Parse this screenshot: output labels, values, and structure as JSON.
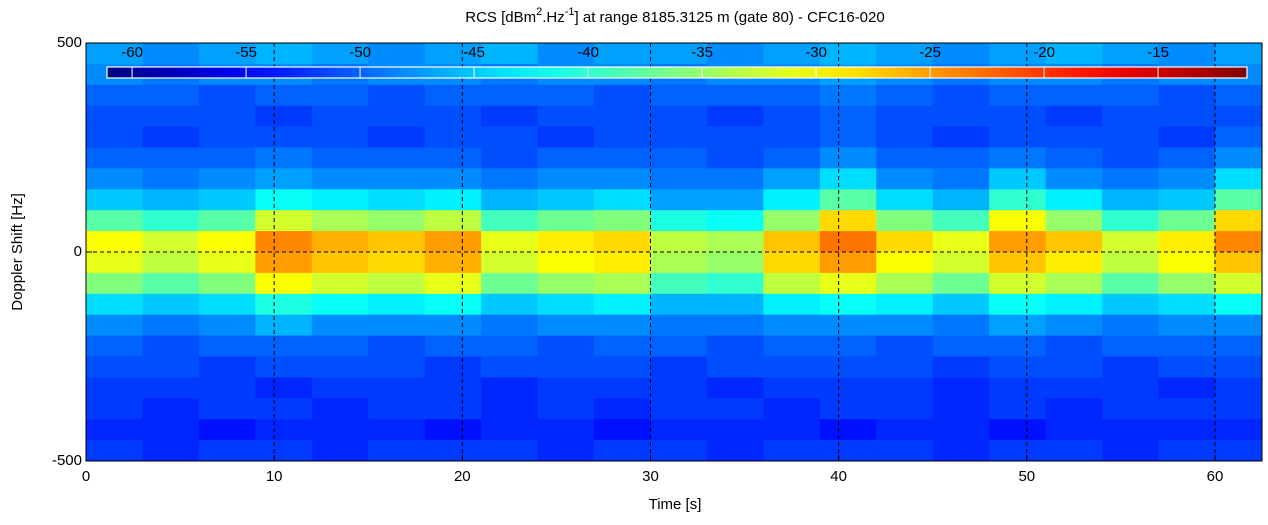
{
  "chart_data": {
    "type": "heatmap",
    "title": [
      "RCS [dBm",
      "2",
      ".Hz",
      "-1",
      "] at range 8185.3125 m (gate 80) - CFC16-020"
    ],
    "xlabel": "Time [s]",
    "ylabel": "Doppler Shift [Hz]",
    "x": [
      1.5,
      4.5,
      7.5,
      10.5,
      13.5,
      16.5,
      19.5,
      22.5,
      25.5,
      28.5,
      31.5,
      34.5,
      37.5,
      40.5,
      43.5,
      46.5,
      49.5,
      52.5,
      55.5,
      58.5,
      61.5
    ],
    "y": [
      475,
      425,
      375,
      325,
      275,
      225,
      175,
      125,
      75,
      25,
      -25,
      -75,
      -125,
      -175,
      -225,
      -275,
      -325,
      -375,
      -425,
      -475
    ],
    "z": [
      [
        -47,
        -48,
        -47,
        -46,
        -47,
        -48,
        -47,
        -46,
        -48,
        -47,
        -47,
        -48,
        -47,
        -46,
        -47,
        -48,
        -47,
        -46,
        -47,
        -48,
        -47
      ],
      [
        -48,
        -49,
        -48,
        -48,
        -49,
        -48,
        -48,
        -49,
        -48,
        -48,
        -49,
        -48,
        -48,
        -47,
        -48,
        -49,
        -48,
        -48,
        -49,
        -48,
        -48
      ],
      [
        -50,
        -50,
        -51,
        -50,
        -50,
        -51,
        -50,
        -50,
        -50,
        -51,
        -50,
        -50,
        -50,
        -49,
        -50,
        -51,
        -50,
        -50,
        -50,
        -51,
        -50
      ],
      [
        -51,
        -51,
        -51,
        -52,
        -51,
        -51,
        -51,
        -52,
        -51,
        -51,
        -51,
        -52,
        -51,
        -50,
        -51,
        -51,
        -51,
        -52,
        -51,
        -51,
        -51
      ],
      [
        -51,
        -52,
        -51,
        -51,
        -51,
        -52,
        -51,
        -51,
        -52,
        -51,
        -51,
        -51,
        -51,
        -50,
        -51,
        -52,
        -51,
        -51,
        -51,
        -52,
        -50
      ],
      [
        -50,
        -50,
        -50,
        -49,
        -50,
        -50,
        -50,
        -51,
        -50,
        -50,
        -50,
        -51,
        -50,
        -48,
        -50,
        -50,
        -49,
        -50,
        -51,
        -50,
        -48
      ],
      [
        -48,
        -49,
        -48,
        -47,
        -48,
        -48,
        -48,
        -49,
        -48,
        -48,
        -49,
        -49,
        -47,
        -44,
        -48,
        -49,
        -45,
        -48,
        -49,
        -48,
        -44
      ],
      [
        -45,
        -46,
        -45,
        -42,
        -43,
        -44,
        -43,
        -46,
        -45,
        -44,
        -47,
        -47,
        -43,
        -38,
        -44,
        -46,
        -40,
        -43,
        -46,
        -45,
        -38
      ],
      [
        -38,
        -40,
        -38,
        -32,
        -34,
        -35,
        -33,
        -39,
        -37,
        -36,
        -41,
        -42,
        -35,
        -28,
        -36,
        -39,
        -30,
        -35,
        -40,
        -37,
        -28
      ],
      [
        -30,
        -32,
        -30,
        -24,
        -26,
        -27,
        -25,
        -31,
        -29,
        -28,
        -33,
        -34,
        -27,
        -23,
        -28,
        -31,
        -25,
        -27,
        -32,
        -29,
        -24
      ],
      [
        -31,
        -33,
        -31,
        -25,
        -27,
        -28,
        -26,
        -32,
        -30,
        -29,
        -34,
        -35,
        -28,
        -25,
        -30,
        -32,
        -27,
        -29,
        -33,
        -30,
        -27
      ],
      [
        -36,
        -38,
        -36,
        -30,
        -32,
        -33,
        -31,
        -37,
        -35,
        -34,
        -39,
        -40,
        -33,
        -31,
        -34,
        -37,
        -32,
        -34,
        -38,
        -35,
        -32
      ],
      [
        -44,
        -45,
        -44,
        -41,
        -42,
        -43,
        -42,
        -45,
        -44,
        -43,
        -46,
        -46,
        -43,
        -42,
        -43,
        -45,
        -42,
        -43,
        -45,
        -44,
        -42
      ],
      [
        -48,
        -49,
        -48,
        -46,
        -48,
        -48,
        -48,
        -49,
        -48,
        -48,
        -49,
        -49,
        -48,
        -48,
        -48,
        -49,
        -47,
        -48,
        -49,
        -48,
        -48
      ],
      [
        -50,
        -51,
        -50,
        -50,
        -50,
        -51,
        -50,
        -50,
        -51,
        -50,
        -50,
        -51,
        -50,
        -50,
        -51,
        -50,
        -50,
        -51,
        -50,
        -50,
        -50
      ],
      [
        -51,
        -51,
        -52,
        -51,
        -51,
        -51,
        -52,
        -51,
        -51,
        -51,
        -52,
        -51,
        -51,
        -51,
        -51,
        -52,
        -51,
        -51,
        -52,
        -51,
        -51
      ],
      [
        -52,
        -52,
        -52,
        -53,
        -52,
        -52,
        -52,
        -53,
        -52,
        -52,
        -52,
        -53,
        -52,
        -52,
        -52,
        -53,
        -52,
        -52,
        -52,
        -53,
        -52
      ],
      [
        -52,
        -53,
        -52,
        -52,
        -53,
        -52,
        -52,
        -53,
        -52,
        -53,
        -52,
        -52,
        -53,
        -52,
        -52,
        -53,
        -52,
        -53,
        -52,
        -52,
        -52
      ],
      [
        -53,
        -53,
        -54,
        -53,
        -53,
        -53,
        -54,
        -53,
        -53,
        -54,
        -53,
        -53,
        -53,
        -54,
        -53,
        -53,
        -54,
        -53,
        -53,
        -53,
        -53
      ],
      [
        -52,
        -53,
        -52,
        -52,
        -53,
        -52,
        -52,
        -52,
        -53,
        -52,
        -52,
        -53,
        -52,
        -52,
        -52,
        -53,
        -52,
        -52,
        -53,
        -52,
        -52
      ]
    ],
    "xlim": [
      0,
      62.5
    ],
    "ylim": [
      -500,
      500
    ],
    "xticks": [
      0,
      10,
      20,
      30,
      40,
      50,
      60
    ],
    "yticks": [
      -500,
      0,
      500
    ],
    "clim": [
      -61.1,
      -11.1
    ],
    "cticks": [
      -60,
      -55,
      -50,
      -45,
      -40,
      -35,
      -30,
      -25,
      -20,
      -15
    ],
    "colormap": "jet",
    "grid": true
  }
}
